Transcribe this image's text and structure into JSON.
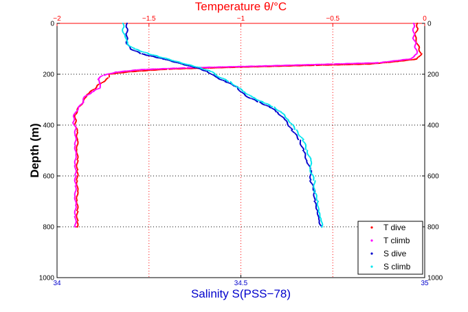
{
  "chart_data": {
    "type": "scatter",
    "title": "Temperature θ/°C",
    "xlabel": "Salinity S(PSS−78)",
    "ylabel": "Depth (m)",
    "x_top": {
      "label": "Temperature θ/°C",
      "range": [
        -2,
        0
      ],
      "ticks": [
        "−2",
        "−1.5",
        "−1",
        "−0.5",
        "0"
      ],
      "tick_values": [
        -2,
        -1.5,
        -1,
        -0.5,
        0
      ],
      "color": "#ff0000"
    },
    "x_bottom": {
      "label": "Salinity S(PSS−78)",
      "range": [
        34,
        35
      ],
      "ticks": [
        "34",
        "34.5",
        "35"
      ],
      "tick_values": [
        34,
        34.5,
        35
      ],
      "color": "#0000cc"
    },
    "y": {
      "range": [
        0,
        1000
      ],
      "reversed": true,
      "ticks": [
        "0",
        "200",
        "400",
        "600",
        "800",
        "1000"
      ],
      "tick_values": [
        0,
        200,
        400,
        600,
        800,
        1000
      ]
    },
    "grid": "dotted",
    "legend_placement": "bottom-right",
    "series": [
      {
        "name": "T dive",
        "axis": "top",
        "color": "#ff0000",
        "marker": "dot",
        "points": [
          [
            -0.04,
            0
          ],
          [
            -0.04,
            20
          ],
          [
            -0.05,
            40
          ],
          [
            -0.05,
            60
          ],
          [
            -0.04,
            80
          ],
          [
            -0.03,
            100
          ],
          [
            -0.02,
            120
          ],
          [
            -0.04,
            140
          ],
          [
            -0.15,
            150
          ],
          [
            -0.3,
            160
          ],
          [
            -0.6,
            165
          ],
          [
            -1.0,
            172
          ],
          [
            -1.4,
            180
          ],
          [
            -1.6,
            190
          ],
          [
            -1.72,
            200
          ],
          [
            -1.72,
            215
          ],
          [
            -1.75,
            230
          ],
          [
            -1.78,
            245
          ],
          [
            -1.8,
            260
          ],
          [
            -1.84,
            280
          ],
          [
            -1.85,
            300
          ],
          [
            -1.87,
            320
          ],
          [
            -1.89,
            340
          ],
          [
            -1.9,
            360
          ],
          [
            -1.9,
            380
          ],
          [
            -1.9,
            400
          ],
          [
            -1.89,
            430
          ],
          [
            -1.89,
            460
          ],
          [
            -1.89,
            500
          ],
          [
            -1.89,
            540
          ],
          [
            -1.89,
            580
          ],
          [
            -1.89,
            620
          ],
          [
            -1.89,
            660
          ],
          [
            -1.89,
            700
          ],
          [
            -1.89,
            740
          ],
          [
            -1.89,
            780
          ],
          [
            -1.89,
            800
          ]
        ]
      },
      {
        "name": "T climb",
        "axis": "top",
        "color": "#ff00ff",
        "marker": "dot",
        "points": [
          [
            -0.06,
            0
          ],
          [
            -0.06,
            20
          ],
          [
            -0.06,
            40
          ],
          [
            -0.06,
            60
          ],
          [
            -0.05,
            80
          ],
          [
            -0.05,
            100
          ],
          [
            -0.04,
            120
          ],
          [
            -0.08,
            140
          ],
          [
            -0.25,
            155
          ],
          [
            -0.5,
            160
          ],
          [
            -0.9,
            168
          ],
          [
            -1.3,
            175
          ],
          [
            -1.55,
            182
          ],
          [
            -1.68,
            192
          ],
          [
            -1.75,
            205
          ],
          [
            -1.78,
            220
          ],
          [
            -1.76,
            240
          ],
          [
            -1.77,
            255
          ],
          [
            -1.81,
            270
          ],
          [
            -1.85,
            290
          ],
          [
            -1.86,
            310
          ],
          [
            -1.88,
            330
          ],
          [
            -1.9,
            350
          ],
          [
            -1.91,
            370
          ],
          [
            -1.91,
            390
          ],
          [
            -1.9,
            410
          ],
          [
            -1.9,
            440
          ],
          [
            -1.9,
            480
          ],
          [
            -1.9,
            520
          ],
          [
            -1.9,
            560
          ],
          [
            -1.9,
            600
          ],
          [
            -1.9,
            640
          ],
          [
            -1.9,
            680
          ],
          [
            -1.9,
            720
          ],
          [
            -1.9,
            760
          ],
          [
            -1.9,
            800
          ]
        ]
      },
      {
        "name": "S dive",
        "axis": "bottom",
        "color": "#0000cc",
        "marker": "dot",
        "points": [
          [
            34.19,
            0
          ],
          [
            34.19,
            20
          ],
          [
            34.19,
            40
          ],
          [
            34.19,
            60
          ],
          [
            34.19,
            80
          ],
          [
            34.2,
            100
          ],
          [
            34.23,
            120
          ],
          [
            34.29,
            140
          ],
          [
            34.34,
            160
          ],
          [
            34.38,
            175
          ],
          [
            34.41,
            190
          ],
          [
            34.43,
            210
          ],
          [
            34.46,
            230
          ],
          [
            34.49,
            250
          ],
          [
            34.5,
            270
          ],
          [
            34.52,
            290
          ],
          [
            34.55,
            310
          ],
          [
            34.58,
            330
          ],
          [
            34.6,
            350
          ],
          [
            34.62,
            380
          ],
          [
            34.64,
            420
          ],
          [
            34.66,
            460
          ],
          [
            34.67,
            500
          ],
          [
            34.68,
            540
          ],
          [
            34.69,
            580
          ],
          [
            34.69,
            620
          ],
          [
            34.7,
            660
          ],
          [
            34.7,
            700
          ],
          [
            34.71,
            740
          ],
          [
            34.71,
            770
          ],
          [
            34.72,
            800
          ]
        ]
      },
      {
        "name": "S climb",
        "axis": "bottom",
        "color": "#00e5ee",
        "marker": "dot",
        "points": [
          [
            34.18,
            0
          ],
          [
            34.18,
            20
          ],
          [
            34.18,
            40
          ],
          [
            34.19,
            60
          ],
          [
            34.19,
            80
          ],
          [
            34.21,
            100
          ],
          [
            34.25,
            120
          ],
          [
            34.3,
            140
          ],
          [
            34.35,
            160
          ],
          [
            34.39,
            175
          ],
          [
            34.42,
            190
          ],
          [
            34.44,
            210
          ],
          [
            34.47,
            230
          ],
          [
            34.49,
            250
          ],
          [
            34.51,
            270
          ],
          [
            34.53,
            290
          ],
          [
            34.56,
            310
          ],
          [
            34.59,
            330
          ],
          [
            34.61,
            350
          ],
          [
            34.63,
            380
          ],
          [
            34.65,
            420
          ],
          [
            34.67,
            460
          ],
          [
            34.68,
            500
          ],
          [
            34.69,
            540
          ],
          [
            34.69,
            580
          ],
          [
            34.7,
            620
          ],
          [
            34.7,
            660
          ],
          [
            34.71,
            700
          ],
          [
            34.71,
            740
          ],
          [
            34.72,
            770
          ],
          [
            34.72,
            800
          ]
        ]
      }
    ]
  }
}
